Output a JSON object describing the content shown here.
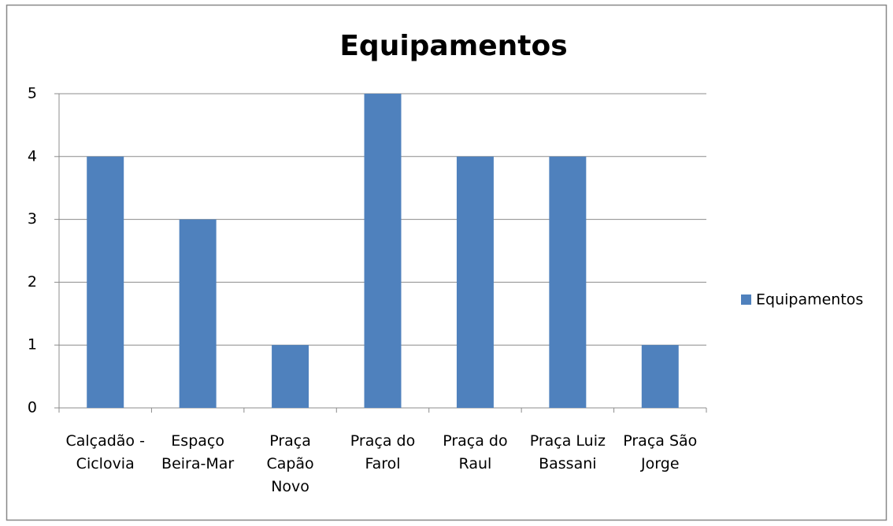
{
  "chart_data": {
    "type": "bar",
    "title": "Equipamentos",
    "categories": [
      "Calçadão - Ciclovia",
      "Espaço Beira-Mar",
      "Praça Capão Novo",
      "Praça do Farol",
      "Praça do Raul",
      "Praça Luiz Bassani",
      "Praça São Jorge"
    ],
    "series": [
      {
        "name": "Equipamentos",
        "color": "#4f81bd",
        "values": [
          4,
          3,
          1,
          5,
          4,
          4,
          1
        ]
      }
    ],
    "ylim": [
      0,
      5
    ],
    "yticks": [
      0,
      1,
      2,
      3,
      4,
      5
    ],
    "grid": true,
    "legend": "right"
  }
}
